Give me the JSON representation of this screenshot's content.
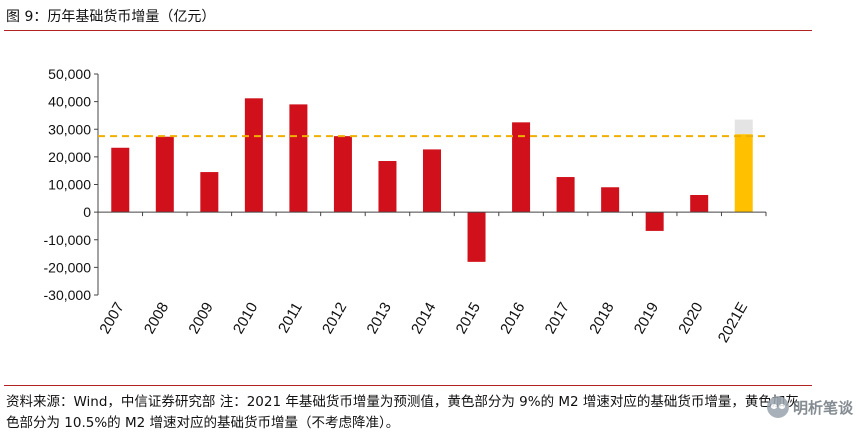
{
  "figure": {
    "title": "图 9：历年基础货币增量（亿元）",
    "source_note": "资料来源：Wind，中信证券研究部  注：2021 年基础货币增量为预测值，黄色部分为 9%的 M2 增速对应的基础货币增量，黄色加灰色部分为 10.5%的 M2 增速对应的基础货币增量（不考虑降准）。",
    "watermark": "明析笔谈",
    "watermark_icon": "wechat-icon"
  },
  "colors": {
    "actual_bar": "#d0101b",
    "forecast_bar": "#ffc000",
    "forecast_extra": "#e4e4e4",
    "reference_line": "#f0b000",
    "rule": "#b22222"
  },
  "chart_data": {
    "type": "bar",
    "title": "",
    "xlabel": "",
    "ylabel": "",
    "ylim": [
      -30000,
      50000
    ],
    "yticks": [
      -30000,
      -20000,
      -10000,
      0,
      10000,
      20000,
      30000,
      40000,
      50000
    ],
    "ytick_labels": [
      "-30,000",
      "-20,000",
      "-10,000",
      "0",
      "10,000",
      "20,000",
      "30,000",
      "40,000",
      "50,000"
    ],
    "grid": false,
    "legend": "none",
    "categories": [
      "2007",
      "2008",
      "2009",
      "2010",
      "2011",
      "2012",
      "2013",
      "2014",
      "2015",
      "2016",
      "2017",
      "2018",
      "2019",
      "2020",
      "2021E"
    ],
    "values": [
      23300,
      27300,
      14500,
      41200,
      39000,
      27500,
      18500,
      22700,
      -18000,
      32500,
      12700,
      9000,
      -6800,
      6200,
      28200
    ],
    "forecast": {
      "category": "2021E",
      "base_value": 28200,
      "upper_value": 33500
    },
    "reference_line": {
      "value": 27500,
      "style": "dashed"
    }
  }
}
